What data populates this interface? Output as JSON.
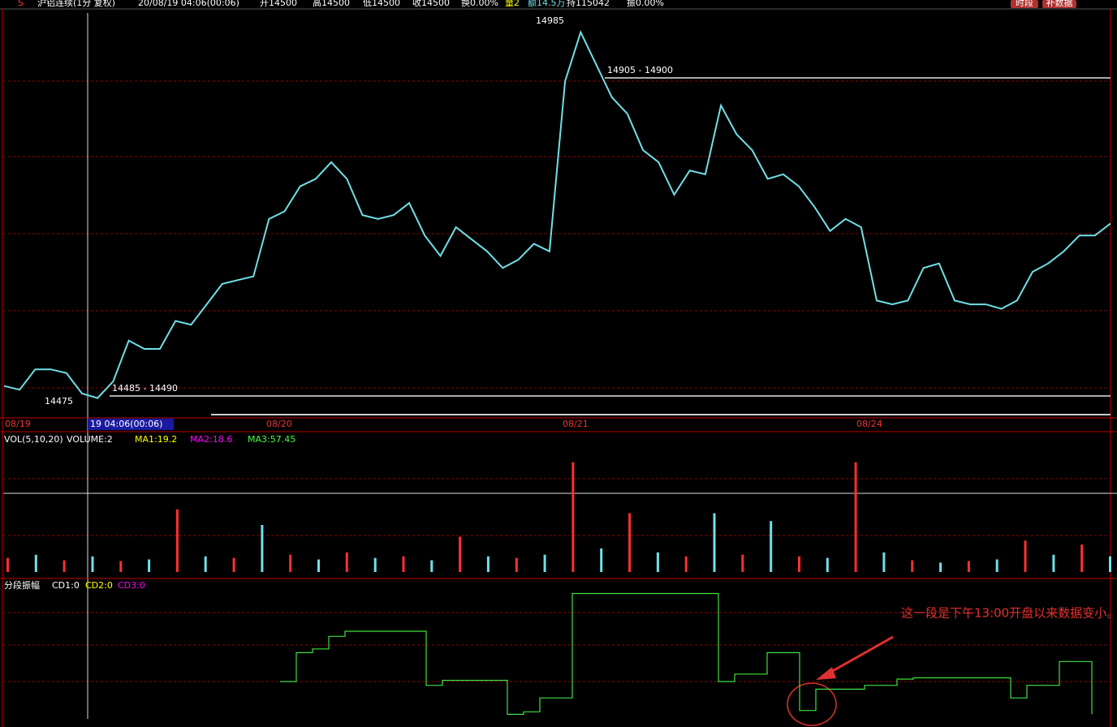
{
  "header": {
    "items": [
      "沪铝连续(1分 复权)",
      "20/08/19 04:06(00:06)",
      "开14500",
      "高14500",
      "低14500",
      "收14500",
      "换0.00%",
      "量2",
      "额14.5万",
      "持115042",
      "振0.00%"
    ],
    "buttons": [
      "时段",
      "补数据"
    ]
  },
  "price": {
    "type": "line",
    "color": "#6fe0e8",
    "ylim": [
      14457,
      14998
    ],
    "values": [
      14496,
      14491,
      14518,
      14518,
      14513,
      14486,
      14480,
      14502,
      14556,
      14545,
      14545,
      14582,
      14577,
      14604,
      14631,
      14636,
      14641,
      14717,
      14727,
      14760,
      14770,
      14792,
      14770,
      14722,
      14717,
      14722,
      14738,
      14695,
      14668,
      14706,
      14690,
      14674,
      14652,
      14663,
      14684,
      14674,
      14899,
      14964,
      14921,
      14878,
      14856,
      14808,
      14792,
      14749,
      14781,
      14776,
      14867,
      14829,
      14808,
      14770,
      14776,
      14760,
      14733,
      14701,
      14717,
      14706,
      14609,
      14604,
      14609,
      14652,
      14658,
      14609,
      14604,
      14604,
      14598,
      14609,
      14647,
      14658,
      14674,
      14695,
      14695,
      14711
    ],
    "labels": {
      "high": "14985",
      "low": "14475",
      "upper_range": "14905 - 14900",
      "lower_range": "14485 - 14490"
    }
  },
  "dates": [
    "08/19",
    "19 04:06(00:06)",
    "08/20",
    "08/21",
    "08/24"
  ],
  "volume": {
    "type": "bar",
    "title": "VOL(5,10,20)",
    "items": [
      "VOLUME:2",
      "MA1:19.2",
      "MA2:18.6",
      "MA3:57.45"
    ],
    "up_color": "#ff3030",
    "down_color": "#6fe0e8",
    "ylim": [
      0,
      150
    ],
    "values": [
      18,
      22,
      15,
      20,
      14,
      16,
      80,
      20,
      18,
      60,
      22,
      16,
      25,
      18,
      20,
      15,
      45,
      20,
      18,
      22,
      140,
      30,
      75,
      25,
      20,
      75,
      22,
      65,
      20,
      18,
      140,
      25,
      15,
      12,
      14,
      16,
      40,
      22,
      35,
      20
    ]
  },
  "indicator": {
    "type": "line",
    "title": "分段振幅",
    "items": [
      "CD1:0",
      "CD2:0",
      "CD3:0"
    ],
    "color": "#40e040",
    "ylim": [
      0,
      100
    ],
    "values": [
      null,
      null,
      null,
      null,
      null,
      null,
      null,
      null,
      null,
      null,
      null,
      null,
      null,
      null,
      null,
      null,
      null,
      29,
      52,
      55,
      65,
      69,
      69,
      69,
      69,
      69,
      26,
      30,
      30,
      30,
      30,
      3,
      5,
      16,
      16,
      99,
      99,
      99,
      99,
      99,
      99,
      99,
      99,
      99,
      29,
      35,
      35,
      52,
      52,
      6,
      23,
      23,
      23,
      26,
      26,
      31,
      32,
      32,
      32,
      32,
      32,
      32,
      16,
      26,
      26,
      45,
      45,
      3
    ]
  },
  "annotation": "这一段是下午13:00开盘以来数据变小。"
}
